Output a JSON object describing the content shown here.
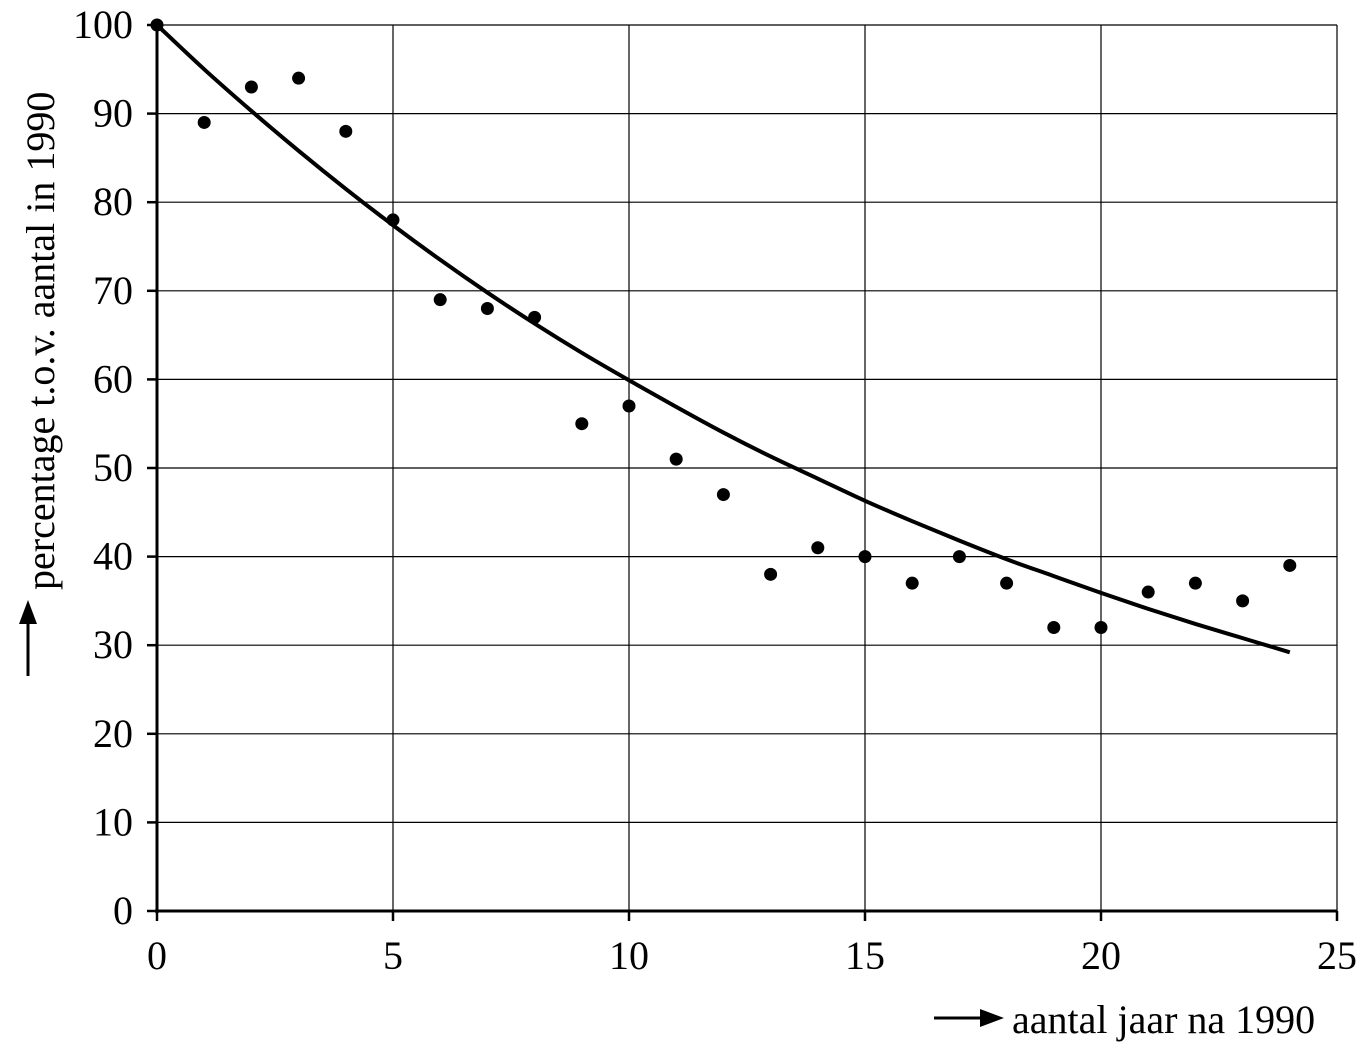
{
  "chart_data": {
    "type": "scatter",
    "title": "",
    "xlabel": "aantal jaar na 1990",
    "ylabel": "percentage t.o.v. aantal in 1990",
    "xlim": [
      0,
      25
    ],
    "ylim": [
      0,
      100
    ],
    "x_ticks": [
      0,
      5,
      10,
      15,
      20,
      25
    ],
    "y_ticks": [
      0,
      10,
      20,
      30,
      40,
      50,
      60,
      70,
      80,
      90,
      100
    ],
    "grid": true,
    "legend": "none",
    "series": [
      {
        "kind": "points",
        "x": [
          0,
          1,
          2,
          3,
          4,
          5,
          6,
          7,
          8,
          9,
          10,
          11,
          12,
          13,
          14,
          15,
          16,
          17,
          18,
          19,
          20,
          21,
          22,
          23,
          24
        ],
        "y": [
          100,
          89,
          93,
          94,
          88,
          78,
          69,
          68,
          67,
          55,
          57,
          51,
          47,
          38,
          41,
          40,
          37,
          40,
          37,
          32,
          32,
          36,
          37,
          35,
          39
        ]
      },
      {
        "kind": "curve",
        "x": [
          0,
          1,
          2,
          3,
          4,
          5,
          6,
          7,
          8,
          9,
          10,
          11,
          12,
          13,
          14,
          15,
          16,
          17,
          18,
          19,
          20,
          21,
          22,
          23,
          24
        ],
        "y": [
          100,
          95,
          90.3,
          85.8,
          81.5,
          77.4,
          73.5,
          69.8,
          66.3,
          63.0,
          59.9,
          56.9,
          54.0,
          51.3,
          48.8,
          46.3,
          44.0,
          41.8,
          39.7,
          37.8,
          35.9,
          34.1,
          32.4,
          30.8,
          29.2
        ]
      }
    ]
  }
}
